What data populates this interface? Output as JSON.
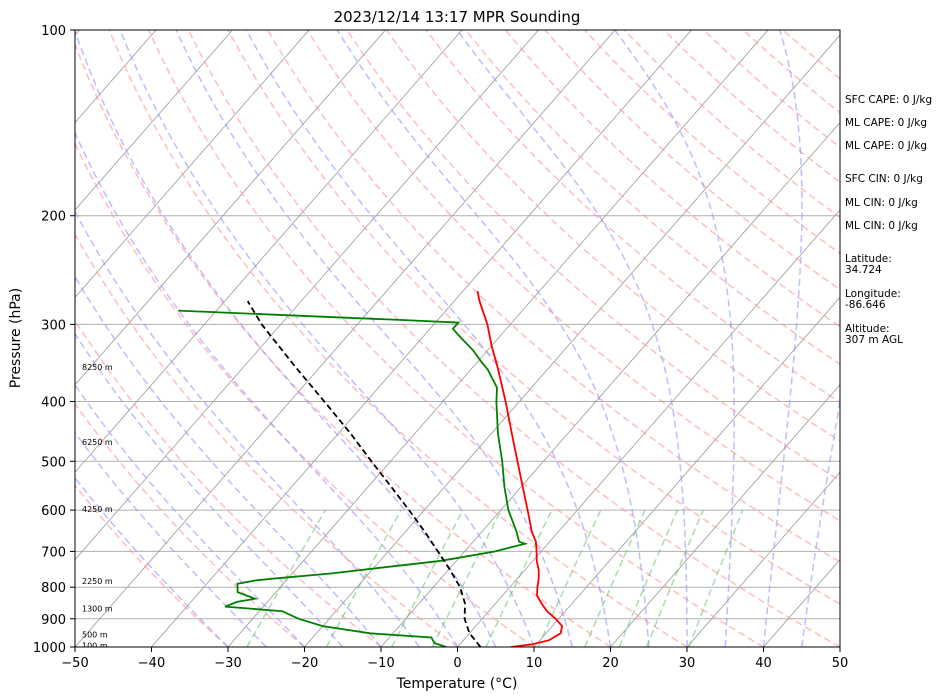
{
  "chart_data": {
    "type": "line",
    "title": "2023/12/14 13:17 MPR Sounding",
    "xlabel": "Temperature (°C)",
    "ylabel": "Pressure (hPa)",
    "xlim": [
      -50,
      50
    ],
    "ylim": [
      1000,
      100
    ],
    "y_scale": "log",
    "skew": "skew-T",
    "x_ticks": [
      -50,
      -40,
      -30,
      -20,
      -10,
      0,
      10,
      20,
      30,
      40,
      50
    ],
    "x_tick_labels": [
      "−50",
      "−40",
      "−30",
      "−20",
      "−10",
      "0",
      "10",
      "20",
      "30",
      "40",
      "50"
    ],
    "y_ticks": [
      1000,
      900,
      800,
      700,
      600,
      500,
      400,
      300,
      200,
      100
    ],
    "grid": "horizontal pressure lines",
    "colors": {
      "temperature": "#ff0000",
      "dewpoint": "#008000",
      "parcel": "#000000",
      "dry_adiabats": "#ff9999",
      "moist_adiabats": "#9999ff",
      "mixing_ratio": "#66bb66",
      "isotherms": "#999999"
    },
    "series": [
      {
        "values": [
          [
            1000,
            7
          ],
          [
            990,
            9.5
          ],
          [
            975,
            11.2
          ],
          [
            950,
            11.9
          ],
          [
            925,
            11.3
          ],
          [
            900,
            9.6
          ],
          [
            875,
            7.6
          ],
          [
            850,
            6.0
          ],
          [
            825,
            4.5
          ],
          [
            800,
            3.6
          ],
          [
            775,
            2.8
          ],
          [
            750,
            1.8
          ],
          [
            725,
            0.5
          ],
          [
            700,
            -0.6
          ],
          [
            675,
            -1.8
          ],
          [
            650,
            -3.5
          ],
          [
            600,
            -6.5
          ],
          [
            550,
            -9.8
          ],
          [
            500,
            -13.4
          ],
          [
            450,
            -17.4
          ],
          [
            400,
            -21.8
          ],
          [
            350,
            -27.0
          ],
          [
            325,
            -30.0
          ],
          [
            300,
            -33.0
          ],
          [
            275,
            -36.7
          ],
          [
            265,
            -38.1
          ]
        ]
      },
      {
        "values": [
          [
            1000,
            -1.5
          ],
          [
            985,
            -3.5
          ],
          [
            965,
            -4.5
          ],
          [
            950,
            -13
          ],
          [
            925,
            -20
          ],
          [
            900,
            -24
          ],
          [
            875,
            -27
          ],
          [
            860,
            -35
          ],
          [
            845,
            -34
          ],
          [
            835,
            -32
          ],
          [
            815,
            -35
          ],
          [
            790,
            -36
          ],
          [
            780,
            -34
          ],
          [
            775,
            -32
          ],
          [
            760,
            -25
          ],
          [
            725,
            -12
          ],
          [
            700,
            -6
          ],
          [
            680,
            -3
          ],
          [
            675,
            -4
          ],
          [
            650,
            -5.5
          ],
          [
            600,
            -9.0
          ],
          [
            550,
            -12.2
          ],
          [
            500,
            -15.4
          ],
          [
            450,
            -19.2
          ],
          [
            400,
            -23.0
          ],
          [
            380,
            -24.5
          ],
          [
            355,
            -27.8
          ],
          [
            345,
            -29.5
          ],
          [
            330,
            -32
          ],
          [
            315,
            -35
          ],
          [
            305,
            -37
          ],
          [
            298,
            -37
          ],
          [
            295,
            -45
          ],
          [
            290,
            -60
          ],
          [
            285,
            -75
          ]
        ]
      },
      {
        "values": [
          [
            1000,
            3
          ],
          [
            950,
            0
          ],
          [
            900,
            -2.3
          ],
          [
            850,
            -4.0
          ],
          [
            800,
            -6.5
          ],
          [
            750,
            -9.8
          ],
          [
            700,
            -13.5
          ],
          [
            650,
            -17.5
          ],
          [
            600,
            -22.0
          ],
          [
            550,
            -27.0
          ],
          [
            500,
            -32.5
          ],
          [
            450,
            -38.5
          ],
          [
            400,
            -45.5
          ],
          [
            350,
            -53.5
          ],
          [
            300,
            -62.5
          ],
          [
            275,
            -67
          ]
        ]
      }
    ],
    "height_labels": [
      {
        "p": 994,
        "text": "100 m"
      },
      {
        "p": 955,
        "text": "500 m"
      },
      {
        "p": 866,
        "text": "1300 m"
      },
      {
        "p": 782,
        "text": "2250 m"
      },
      {
        "p": 598,
        "text": "4250 m"
      },
      {
        "p": 465,
        "text": "6250 m"
      },
      {
        "p": 352,
        "text": "8250 m"
      }
    ]
  },
  "side_panel": [
    {
      "text": "SFC CAPE: 0 J/kg",
      "lines": [
        "SFC CAPE: 0 J/kg"
      ]
    },
    {
      "text": "ML CAPE: 0 J/kg",
      "lines": [
        "ML CAPE: 0 J/kg"
      ]
    },
    {
      "text": "ML CAPE: 0 J/kg",
      "lines": [
        "ML CAPE: 0 J/kg"
      ]
    },
    {
      "text": "SFC CIN: 0 J/kg",
      "lines": [
        "SFC CIN: 0 J/kg"
      ]
    },
    {
      "text": "ML CIN: 0 J/kg",
      "lines": [
        "ML CIN: 0 J/kg"
      ]
    },
    {
      "text": "ML CIN: 0 J/kg",
      "lines": [
        "ML CIN: 0 J/kg"
      ]
    },
    {
      "text": "Latitude:\n34.724",
      "lines": [
        "Latitude:",
        "34.724"
      ]
    },
    {
      "text": "Longitude:\n-86.646",
      "lines": [
        "Longitude:",
        "-86.646"
      ]
    },
    {
      "text": "Altitude:\n307 m AGL",
      "lines": [
        "Altitude:",
        "307 m AGL"
      ]
    }
  ]
}
